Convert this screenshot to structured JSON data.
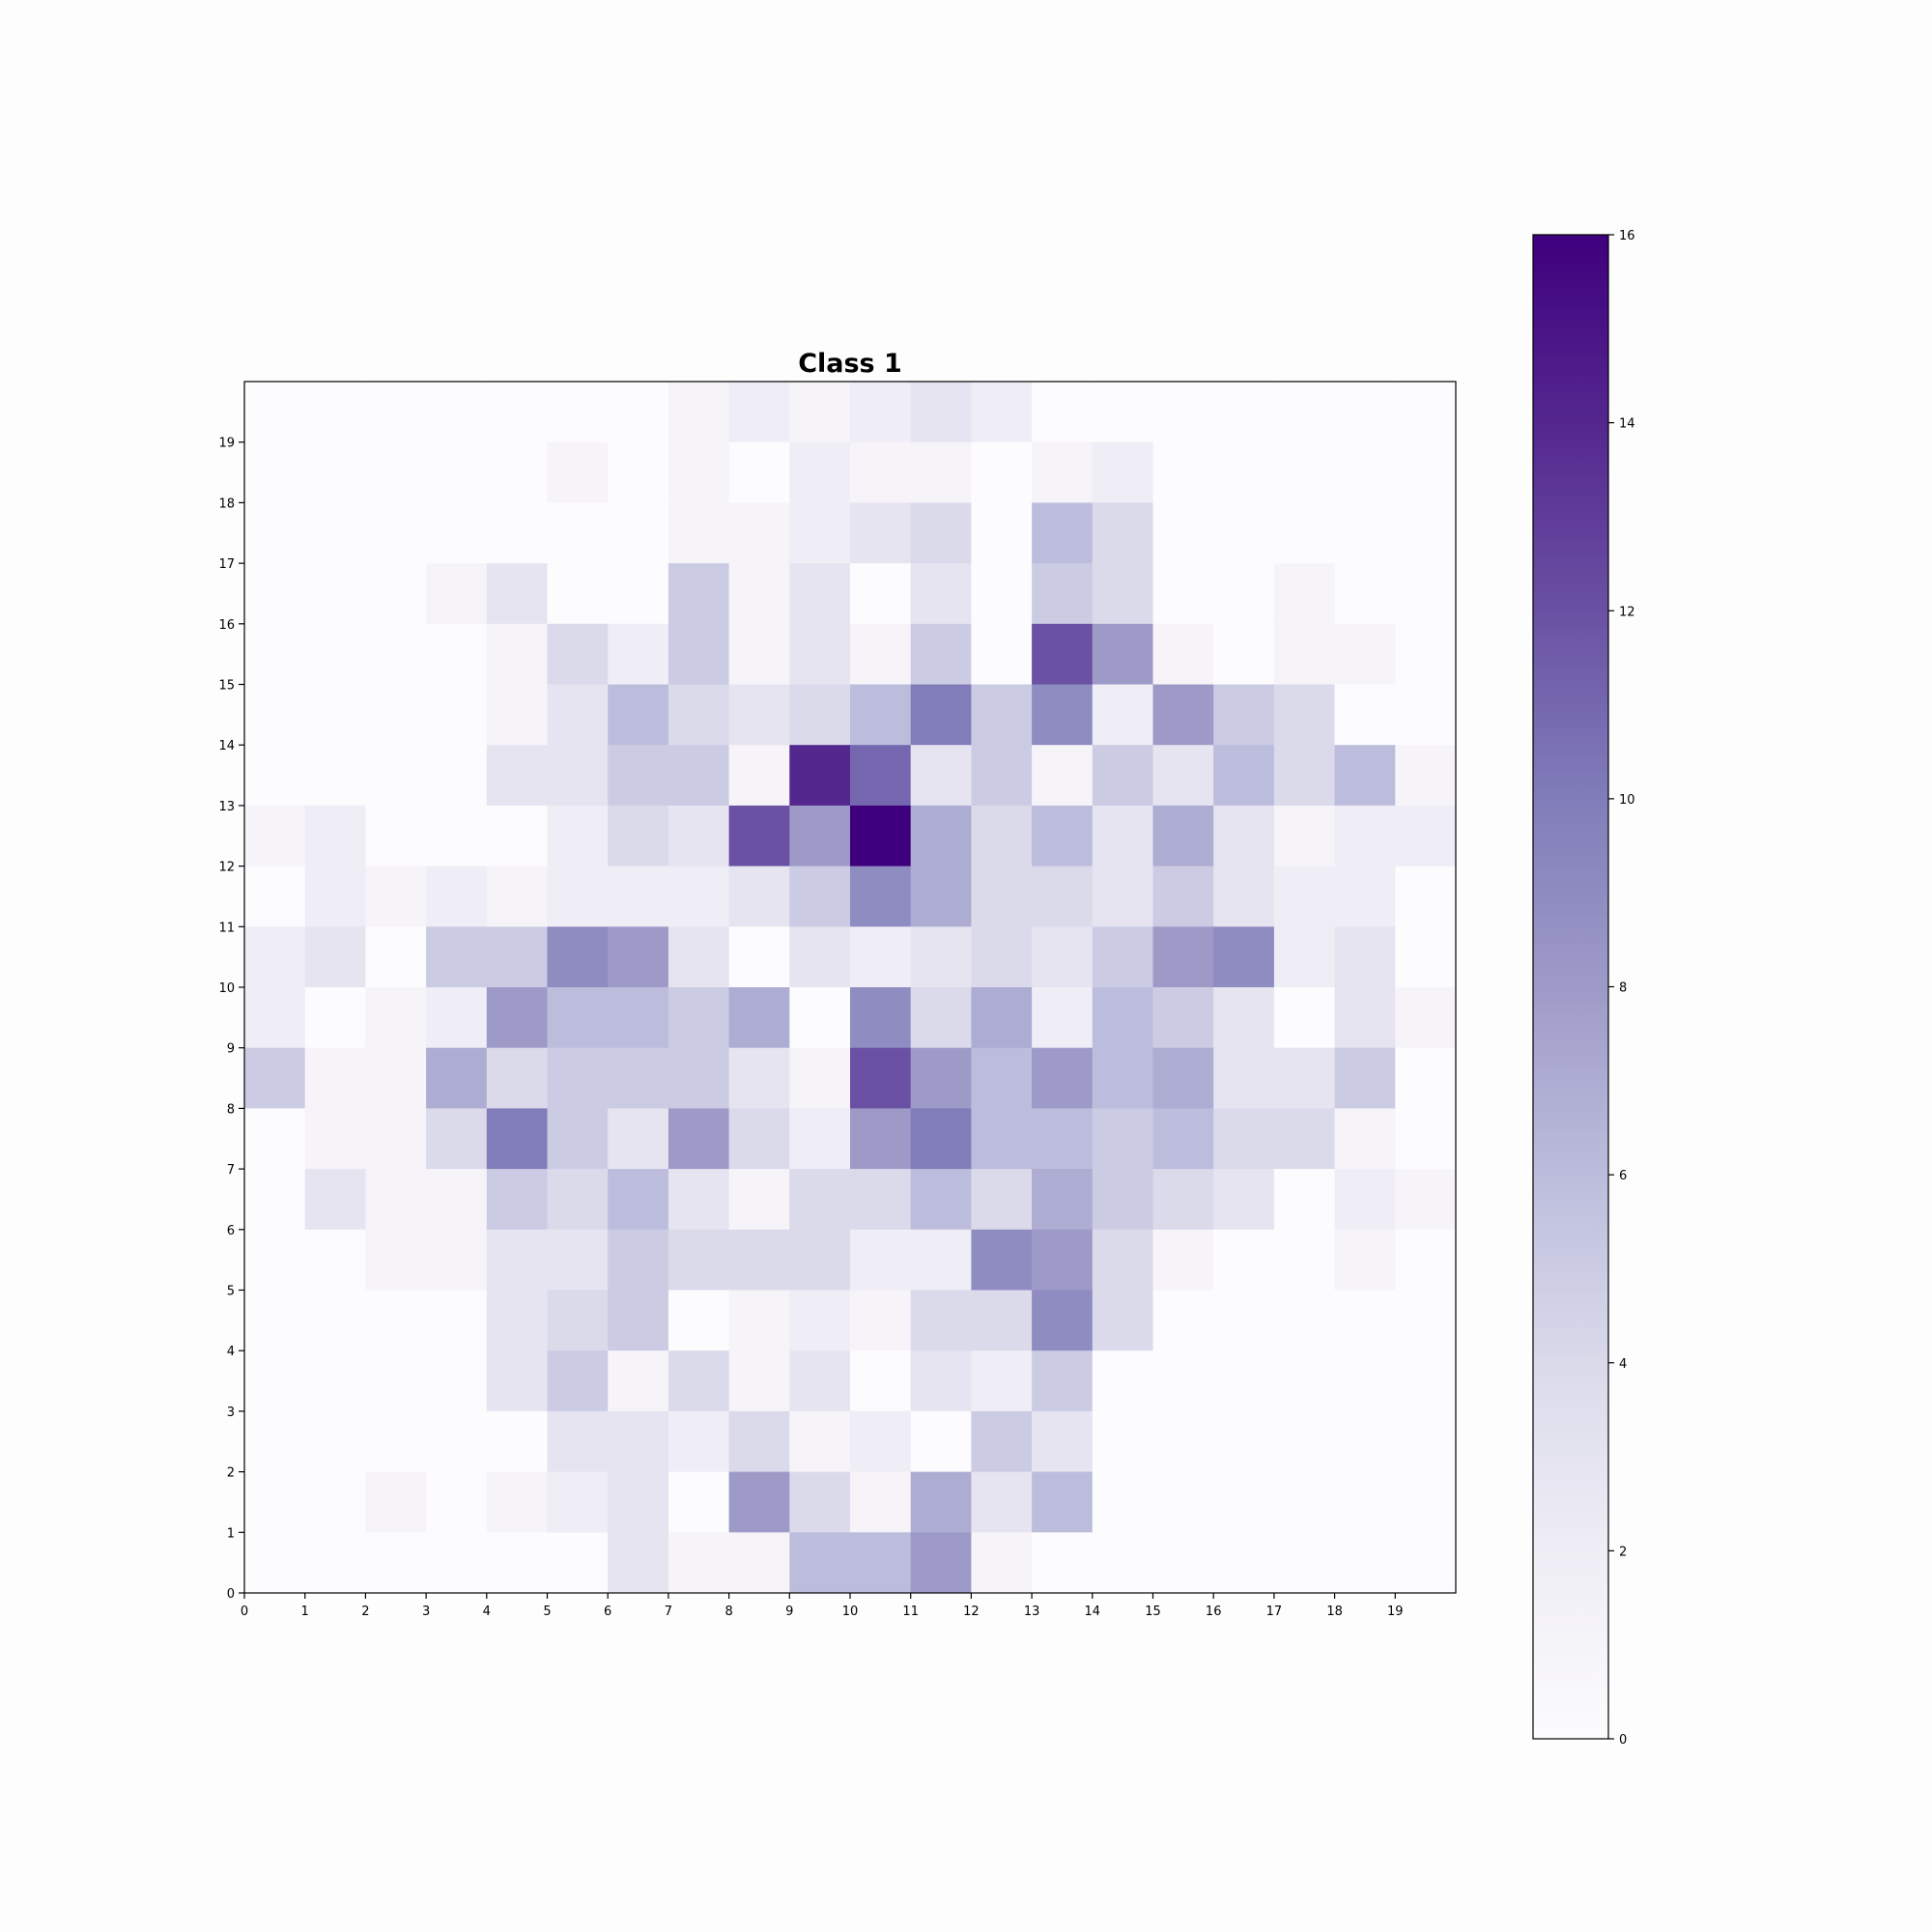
{
  "chart_data": {
    "type": "heatmap",
    "title": "Class 1",
    "xlabel": "",
    "ylabel": "",
    "x_ticks": [
      "0",
      "1",
      "2",
      "3",
      "4",
      "5",
      "6",
      "7",
      "8",
      "9",
      "10",
      "11",
      "12",
      "13",
      "14",
      "15",
      "16",
      "17",
      "18",
      "19"
    ],
    "y_ticks": [
      "0",
      "1",
      "2",
      "3",
      "4",
      "5",
      "6",
      "7",
      "8",
      "9",
      "10",
      "11",
      "12",
      "13",
      "14",
      "15",
      "16",
      "17",
      "18",
      "19"
    ],
    "xlim": [
      0,
      20
    ],
    "ylim": [
      0,
      20
    ],
    "colormap": "Purples",
    "colorbar": {
      "min": 0,
      "max": 16,
      "ticks": [
        "0",
        "2",
        "4",
        "6",
        "8",
        "10",
        "12",
        "14",
        "16"
      ]
    },
    "grid": false,
    "rows_top_to_bottom": [
      [
        0,
        0,
        0,
        0,
        0,
        0,
        0,
        1,
        2,
        1,
        2,
        3,
        2,
        0,
        0,
        0,
        0,
        0,
        0,
        0
      ],
      [
        0,
        0,
        0,
        0,
        0,
        1,
        0,
        1,
        0,
        2,
        1,
        1,
        0,
        1,
        2,
        0,
        0,
        0,
        0,
        0
      ],
      [
        0,
        0,
        0,
        0,
        0,
        0,
        0,
        1,
        1,
        2,
        3,
        4,
        0,
        6,
        4,
        0,
        0,
        0,
        0,
        0
      ],
      [
        0,
        0,
        0,
        1,
        3,
        0,
        0,
        5,
        1,
        3,
        0,
        3,
        0,
        5,
        4,
        0,
        0,
        1,
        0,
        0
      ],
      [
        0,
        0,
        0,
        0,
        1,
        4,
        2,
        5,
        1,
        3,
        1,
        5,
        0,
        12,
        8,
        1,
        0,
        1,
        1,
        0
      ],
      [
        0,
        0,
        0,
        0,
        1,
        3,
        6,
        4,
        3,
        4,
        6,
        10,
        5,
        9,
        2,
        8,
        5,
        4,
        0,
        0
      ],
      [
        0,
        0,
        0,
        0,
        3,
        3,
        5,
        5,
        1,
        14,
        11,
        3,
        5,
        1,
        5,
        3,
        6,
        4,
        6,
        1
      ],
      [
        1,
        2,
        0,
        0,
        0,
        2,
        4,
        3,
        12,
        8,
        16,
        7,
        4,
        6,
        3,
        7,
        3,
        1,
        2,
        2
      ],
      [
        0,
        2,
        1,
        2,
        1,
        2,
        2,
        2,
        3,
        5,
        9,
        7,
        4,
        4,
        3,
        5,
        3,
        2,
        2,
        0
      ],
      [
        2,
        3,
        0,
        5,
        5,
        9,
        8,
        3,
        0,
        3,
        2,
        3,
        4,
        3,
        5,
        8,
        9,
        2,
        3,
        0
      ],
      [
        2,
        0,
        1,
        2,
        8,
        6,
        6,
        5,
        7,
        0,
        9,
        4,
        7,
        2,
        6,
        5,
        3,
        0,
        3,
        1
      ],
      [
        5,
        1,
        1,
        7,
        4,
        5,
        5,
        5,
        3,
        1,
        12,
        8,
        6,
        8,
        6,
        7,
        3,
        3,
        5,
        0
      ],
      [
        0,
        1,
        1,
        4,
        10,
        5,
        3,
        8,
        4,
        2,
        8,
        10,
        6,
        6,
        5,
        6,
        4,
        4,
        1,
        0
      ],
      [
        0,
        3,
        1,
        1,
        5,
        4,
        6,
        3,
        1,
        4,
        4,
        6,
        4,
        7,
        5,
        4,
        3,
        0,
        2,
        1
      ],
      [
        0,
        0,
        1,
        1,
        3,
        3,
        5,
        4,
        4,
        4,
        2,
        2,
        9,
        8,
        4,
        1,
        0,
        0,
        1,
        0
      ],
      [
        0,
        0,
        0,
        0,
        3,
        4,
        5,
        0,
        1,
        2,
        1,
        4,
        4,
        9,
        4,
        0,
        0,
        0,
        0,
        0
      ],
      [
        0,
        0,
        0,
        0,
        3,
        5,
        1,
        4,
        1,
        3,
        0,
        3,
        2,
        5,
        0,
        0,
        0,
        0,
        0,
        0
      ],
      [
        0,
        0,
        0,
        0,
        0,
        3,
        3,
        2,
        4,
        1,
        2,
        0,
        5,
        3,
        0,
        0,
        0,
        0,
        0,
        0
      ],
      [
        0,
        0,
        1,
        0,
        1,
        2,
        3,
        0,
        8,
        4,
        1,
        7,
        3,
        6,
        0,
        0,
        0,
        0,
        0,
        0
      ],
      [
        0,
        0,
        0,
        0,
        0,
        0,
        3,
        1,
        1,
        6,
        6,
        8,
        1,
        0,
        0,
        0,
        0,
        0,
        0,
        0
      ]
    ]
  }
}
